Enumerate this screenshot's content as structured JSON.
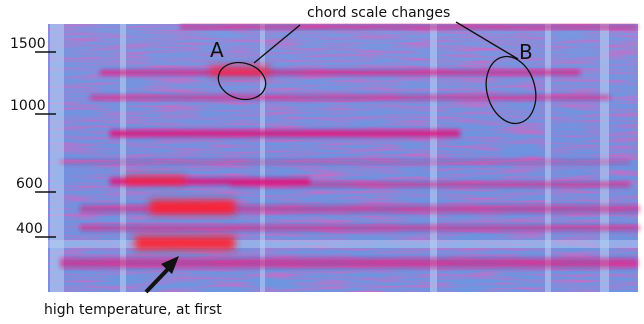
{
  "annotations": {
    "title_callout": "chord scale changes",
    "bottom_callout": "high temperature, at first",
    "marker_a": "A",
    "marker_b": "B"
  },
  "y_axis": {
    "ticks": [
      "1500",
      "1000",
      "600",
      "400"
    ]
  },
  "colors": {
    "base": "#6f95df",
    "highlight": "#e2127a",
    "hot": "#ff1e2d",
    "pale": "#b7d3f5"
  }
}
